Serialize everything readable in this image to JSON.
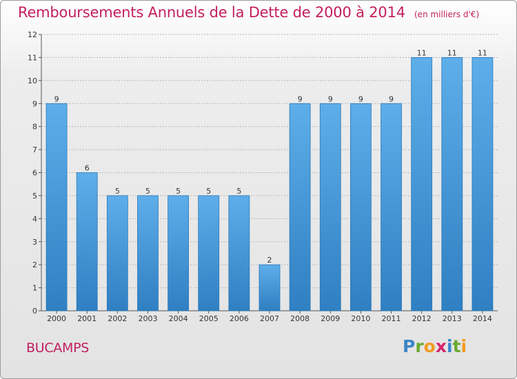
{
  "title": "Remboursements Annuels de la Dette de 2000 à 2014",
  "subtitle": "(en milliers d'€)",
  "city": "BUCAMPS",
  "logo": {
    "text": "Proxiti",
    "letters": [
      {
        "ch": "P",
        "color": "#3a86c8"
      },
      {
        "ch": "r",
        "color": "#6aaa2f"
      },
      {
        "ch": "o",
        "color": "#f29a1d"
      },
      {
        "ch": "x",
        "color": "#d6246e"
      },
      {
        "ch": "i",
        "color": "#3a86c8"
      },
      {
        "ch": "t",
        "color": "#6aaa2f"
      },
      {
        "ch": "i",
        "color": "#f29a1d"
      }
    ]
  },
  "colors": {
    "bar_light": "#5eaeea",
    "bar_dark": "#2f7fc2",
    "bar_edge": "#2a78b8",
    "title": "#c21f5d",
    "grid": "#b5b5b5"
  },
  "chart_data": {
    "type": "bar",
    "title": "Remboursements Annuels de la Dette de 2000 à 2014",
    "unit": "(en milliers d'€)",
    "categories": [
      "2000",
      "2001",
      "2002",
      "2003",
      "2004",
      "2005",
      "2006",
      "2007",
      "2008",
      "2009",
      "2010",
      "2011",
      "2012",
      "2013",
      "2014"
    ],
    "values": [
      9,
      6,
      5,
      5,
      5,
      5,
      5,
      2,
      9,
      9,
      9,
      9,
      11,
      11,
      11
    ],
    "yticks": [
      0,
      1,
      2,
      3,
      4,
      5,
      6,
      7,
      8,
      9,
      10,
      11,
      12
    ],
    "ylim": [
      0,
      12
    ],
    "xlabel": "",
    "ylabel": "",
    "grid": true
  }
}
